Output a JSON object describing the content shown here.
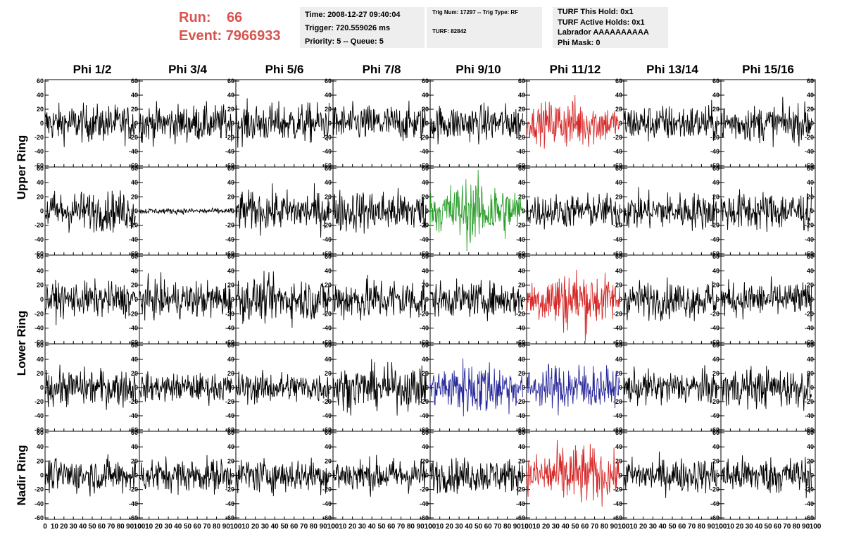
{
  "header": {
    "run_label": "Run:",
    "run_value": "66",
    "event_label": "Event:",
    "event_value": "7966933"
  },
  "info_panels": {
    "time": "Time: 2008-12-27 09:40:04",
    "trigger": "Trigger: 720.559026 ms",
    "priority": "Priority: 5 -- Queue: 5",
    "trig_num": "Trig Num: 17297 -- Trig Type: RF",
    "turf": "TURF: 82842",
    "turf_this_hold": "TURF This Hold: 0x1",
    "turf_active_holds": "TURF Active Holds: 0x1",
    "labrador": "Labrador AAAAAAAAAA",
    "phi_mask": "Phi Mask: 0"
  },
  "chart_data": {
    "type": "line",
    "grid": "8 columns x 5 rows of waveform panels",
    "columns": [
      "Phi 1/2",
      "Phi 3/4",
      "Phi 5/6",
      "Phi 7/8",
      "Phi 9/10",
      "Phi 11/12",
      "Phi 13/14",
      "Phi 15/16"
    ],
    "row_groups": [
      {
        "label": "Upper Ring",
        "rows": [
          0,
          1
        ]
      },
      {
        "label": "Lower Ring",
        "rows": [
          2,
          3
        ]
      },
      {
        "label": "Nadir Ring",
        "rows": [
          4
        ]
      }
    ],
    "ylim": [
      -60,
      60
    ],
    "y_ticks": [
      -60,
      -40,
      -20,
      0,
      20,
      40,
      60
    ],
    "xlim": [
      0,
      100
    ],
    "x_ticks": [
      0,
      10,
      20,
      30,
      40,
      50,
      60,
      70,
      80,
      90,
      100
    ],
    "x_visible_range": [
      0,
      96
    ],
    "colors": {
      "normal": "#000000",
      "red": "#d62828",
      "green": "#2a9d2a",
      "blue": "#26269a"
    },
    "panels": [
      [
        {
          "color": "normal",
          "amp": 13
        },
        {
          "color": "normal",
          "amp": 13
        },
        {
          "color": "normal",
          "amp": 14
        },
        {
          "color": "normal",
          "amp": 13
        },
        {
          "color": "normal",
          "amp": 13
        },
        {
          "color": "red",
          "amp": 14
        },
        {
          "color": "normal",
          "amp": 13
        },
        {
          "color": "normal",
          "amp": 13
        }
      ],
      [
        {
          "color": "normal",
          "amp": 14
        },
        {
          "color": "normal",
          "amp": 2
        },
        {
          "color": "normal",
          "amp": 14
        },
        {
          "color": "normal",
          "amp": 15
        },
        {
          "color": "green",
          "amp": 18
        },
        {
          "color": "normal",
          "amp": 12
        },
        {
          "color": "normal",
          "amp": 13
        },
        {
          "color": "normal",
          "amp": 14
        }
      ],
      [
        {
          "color": "normal",
          "amp": 12
        },
        {
          "color": "normal",
          "amp": 13
        },
        {
          "color": "normal",
          "amp": 15
        },
        {
          "color": "normal",
          "amp": 15
        },
        {
          "color": "normal",
          "amp": 12
        },
        {
          "color": "red",
          "amp": 17
        },
        {
          "color": "normal",
          "amp": 13
        },
        {
          "color": "normal",
          "amp": 12
        }
      ],
      [
        {
          "color": "normal",
          "amp": 13
        },
        {
          "color": "normal",
          "amp": 10
        },
        {
          "color": "normal",
          "amp": 11
        },
        {
          "color": "normal",
          "amp": 15
        },
        {
          "color": "blue",
          "amp": 16
        },
        {
          "color": "blue",
          "amp": 14
        },
        {
          "color": "normal",
          "amp": 12
        },
        {
          "color": "normal",
          "amp": 14
        }
      ],
      [
        {
          "color": "normal",
          "amp": 12
        },
        {
          "color": "normal",
          "amp": 12
        },
        {
          "color": "normal",
          "amp": 12
        },
        {
          "color": "normal",
          "amp": 12
        },
        {
          "color": "normal",
          "amp": 12
        },
        {
          "color": "red",
          "amp": 17
        },
        {
          "color": "normal",
          "amp": 12
        },
        {
          "color": "normal",
          "amp": 13
        }
      ]
    ]
  }
}
